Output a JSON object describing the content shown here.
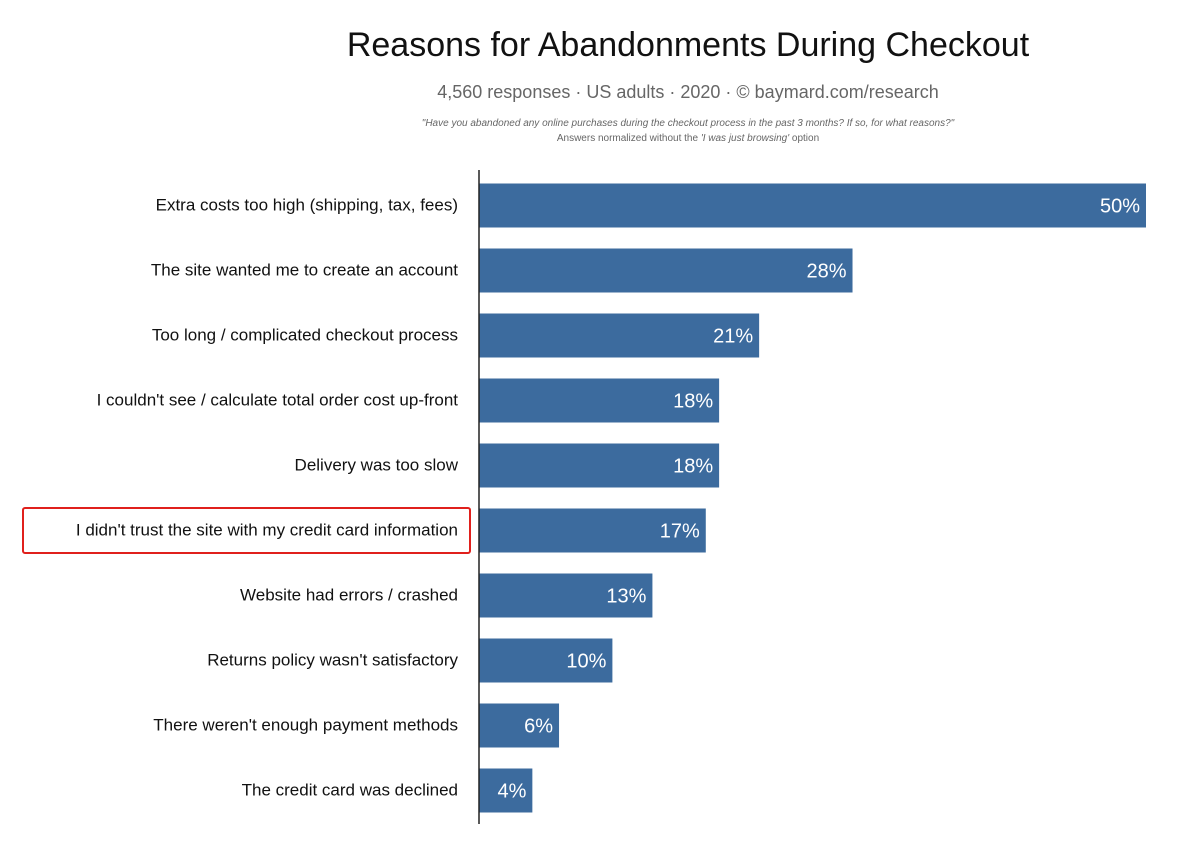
{
  "header": {
    "title": "Reasons for Abandonments During Checkout",
    "subtitle": "4,560 responses  ·  US adults  ·  2020  ·  ©  baymard.com/research",
    "question": "\"Have you abandoned any online purchases during the checkout process in the past 3 months? If so, for what reasons?\"",
    "note_prefix": "Answers normalized without the ",
    "note_emphasis": "'I was just browsing'",
    "note_suffix": " option"
  },
  "colors": {
    "bar": "#3c6b9e",
    "bar_label": "#ffffff",
    "highlight_box": "#e0201c",
    "axis": "#222222"
  },
  "highlight": {
    "category_index": 5
  },
  "chart_data": {
    "type": "bar",
    "orientation": "horizontal",
    "categories": [
      "Extra costs too high (shipping, tax, fees)",
      "The site wanted me to create an account",
      "Too long / complicated checkout process",
      "I couldn't see / calculate total order cost up-front",
      "Delivery was too slow",
      "I didn't trust the site with my credit card information",
      "Website had errors / crashed",
      "Returns policy wasn't satisfactory",
      "There weren't enough payment methods",
      "The credit card was declined"
    ],
    "values": [
      50,
      28,
      21,
      18,
      18,
      17,
      13,
      10,
      6,
      4
    ],
    "data_labels": [
      "50%",
      "28%",
      "21%",
      "18%",
      "18%",
      "17%",
      "13%",
      "10%",
      "6%",
      "4%"
    ],
    "xlim": [
      0,
      50
    ],
    "grid": false,
    "legend": "none"
  }
}
